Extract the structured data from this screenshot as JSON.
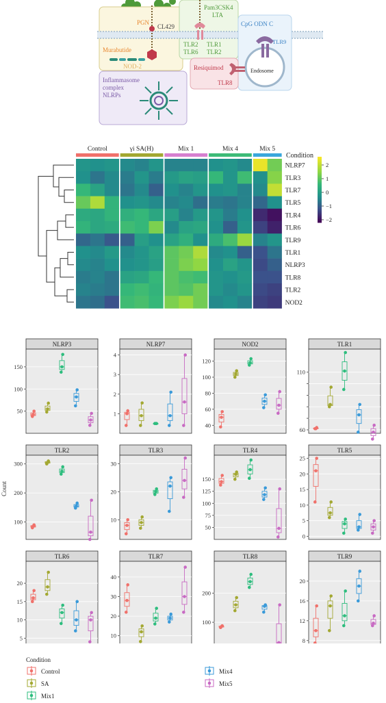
{
  "schematic": {
    "labels": {
      "pgn": "PGN",
      "cl429": "CL429",
      "murabutide": "Murabutide",
      "nod2": "NOD-2",
      "pam3": "Pam3CSK4",
      "lta": "LTA",
      "tlr2_a": "TLR2",
      "tlr6": "TLR6",
      "tlr1": "TLR1",
      "tlr2_b": "TLR2",
      "cpg": "CpG ODN C",
      "tlr9": "TLR9",
      "endosome": "Endosome",
      "resiquimod": "Resiquimod",
      "tlr8": "TLR8",
      "inflammasome": "Inflammasome",
      "complex": "complex",
      "nlrps": "NLRPs"
    },
    "colors": {
      "orange": "#e8872e",
      "green": "#4e9a3a",
      "red": "#c0394b",
      "blue": "#3b82c4",
      "purple": "#7a5aa6",
      "membrane": "#9fb7cc"
    }
  },
  "heatmap": {
    "condition_label": "Condition",
    "group_labels": [
      "Control",
      "γi SA(H)",
      "Mix 1",
      "Mix 4",
      "Mix 5"
    ],
    "group_colors": [
      "#f0716b",
      "#a3a832",
      "#d67fd0",
      "#3dbb78",
      "#3aa7dc"
    ],
    "rows": [
      "NLRP7",
      "TLR3",
      "TLR7",
      "TLR5",
      "TLR4",
      "TLR6",
      "TLR9",
      "TLR1",
      "NLRP3",
      "TLR8",
      "TLR2",
      "NOD2"
    ],
    "values": [
      [
        -0.2,
        -0.3,
        -0.2,
        -0.4,
        -0.5,
        -0.2,
        -0.5,
        -0.5,
        -0.5,
        -0.3,
        -0.2,
        -0.4,
        2.4,
        1.2
      ],
      [
        -0.3,
        -0.7,
        -0.4,
        -0.6,
        -0.2,
        -0.6,
        -0.1,
        0.1,
        0.0,
        0.6,
        -0.2,
        0.7,
        -0.3,
        1.4
      ],
      [
        0.6,
        0.1,
        -0.4,
        -0.7,
        -0.4,
        -1.0,
        -0.3,
        -0.5,
        -0.2,
        -0.3,
        -0.2,
        -0.5,
        -0.4,
        2.0
      ],
      [
        1.1,
        1.8,
        0.5,
        -0.3,
        -0.2,
        -0.4,
        -0.5,
        -0.4,
        -0.8,
        -0.6,
        -0.7,
        -0.5,
        -0.9,
        -0.3
      ],
      [
        0.3,
        0.2,
        0.5,
        0.4,
        0.6,
        0.2,
        0.0,
        -0.5,
        -0.1,
        -0.2,
        -0.6,
        -0.3,
        -1.7,
        -2.0
      ],
      [
        0.5,
        0.2,
        0.3,
        0.7,
        0.6,
        1.3,
        -0.4,
        0.1,
        0.2,
        -0.3,
        -1.0,
        -0.2,
        -1.4,
        -1.8
      ],
      [
        -0.9,
        -0.7,
        -1.1,
        -1.0,
        0.0,
        -0.3,
        0.1,
        0.4,
        -0.3,
        0.3,
        0.8,
        1.6,
        -0.5,
        -0.2
      ],
      [
        -0.3,
        -0.4,
        -0.1,
        -0.4,
        -0.2,
        0.1,
        1.0,
        1.2,
        1.8,
        -0.4,
        -0.3,
        -1.0,
        -1.2,
        -0.7
      ],
      [
        -0.4,
        -0.5,
        -0.3,
        -0.3,
        -0.2,
        0.0,
        1.0,
        1.3,
        1.5,
        -0.3,
        0.1,
        -0.2,
        -1.3,
        -1.0
      ],
      [
        -0.6,
        -0.5,
        -0.7,
        0.1,
        0.2,
        0.6,
        1.0,
        0.8,
        0.7,
        -0.2,
        -0.3,
        -0.1,
        -1.2,
        -1.2
      ],
      [
        -0.5,
        -0.6,
        -0.7,
        0.6,
        0.7,
        0.5,
        1.0,
        0.9,
        1.2,
        -0.2,
        -0.4,
        -0.2,
        -1.3,
        -1.4
      ],
      [
        -0.7,
        -0.8,
        -1.2,
        0.7,
        0.8,
        0.6,
        1.3,
        1.6,
        1.2,
        -0.4,
        -0.3,
        -0.5,
        -1.4,
        -1.5
      ]
    ],
    "scale_ticks": [
      "2",
      "1",
      "0",
      "−1",
      "−2"
    ],
    "scale_values": [
      2,
      1,
      0,
      -1,
      -2
    ],
    "scale_range": [
      -2.2,
      2.6
    ]
  },
  "chart_data": {
    "type": "box",
    "ylabel": "Count",
    "legend_title": "Condition",
    "conditions": [
      "Control",
      "SA",
      "Mix1",
      "Mix4",
      "Mix5"
    ],
    "condition_colors": [
      "#f0716b",
      "#a3a832",
      "#2ebd7e",
      "#3a9ad9",
      "#c86ac3"
    ],
    "panels": [
      {
        "name": "NLRP3",
        "ylim": [
          0,
          190
        ],
        "ticks": [
          50,
          100,
          150
        ],
        "tick_labels": [
          "50",
          "100",
          "150"
        ],
        "points": [
          [
            38,
            42,
            50
          ],
          [
            48,
            55,
            68
          ],
          [
            138,
            150,
            178
          ],
          [
            62,
            82,
            98
          ],
          [
            18,
            30,
            45
          ]
        ]
      },
      {
        "name": "NLRP7",
        "ylim": [
          0,
          4.3
        ],
        "ticks": [
          1,
          2,
          3,
          4
        ],
        "tick_labels": [
          "1",
          "2",
          "3",
          "4"
        ],
        "points": [
          [
            0.4,
            1.0,
            1.15
          ],
          [
            0.4,
            0.9,
            1.55
          ],
          [
            0.5,
            0.5,
            0.5
          ],
          [
            0.4,
            0.9,
            2.1
          ],
          [
            0.4,
            1.6,
            4.0
          ]
        ]
      },
      {
        "name": "NOD2",
        "ylim": [
          30,
          135
        ],
        "ticks": [
          40,
          60,
          80,
          100,
          120
        ],
        "tick_labels": [
          "40",
          "60",
          "80",
          "100",
          "120"
        ],
        "points": [
          [
            38,
            50,
            57
          ],
          [
            100,
            104,
            108
          ],
          [
            115,
            118,
            123
          ],
          [
            62,
            70,
            78
          ],
          [
            55,
            65,
            82
          ]
        ]
      },
      {
        "name": "TLR1",
        "ylim": [
          57,
          130
        ],
        "ticks": [
          60,
          70,
          80,
          90,
          100,
          110
        ],
        "tick_labels": [
          "60",
          "",
          "",
          "",
          "",
          "110"
        ],
        "points": [
          [
            61,
            61,
            62
          ],
          [
            80,
            82,
            97
          ],
          [
            95,
            111,
            127
          ],
          [
            58,
            73,
            82
          ],
          [
            52,
            58,
            64
          ]
        ]
      },
      {
        "name": "TLR2",
        "ylim": [
          40,
          330
        ],
        "ticks": [
          100,
          200,
          300
        ],
        "tick_labels": [
          "100",
          "200",
          "300"
        ],
        "points": [
          [
            80,
            85,
            90
          ],
          [
            300,
            305,
            310
          ],
          [
            265,
            275,
            290
          ],
          [
            148,
            155,
            165
          ],
          [
            40,
            65,
            175
          ]
        ]
      },
      {
        "name": "TLR3",
        "ylim": [
          3,
          33
        ],
        "ticks": [
          10,
          20,
          30
        ],
        "tick_labels": [
          "10",
          "20",
          "30"
        ],
        "points": [
          [
            5,
            8,
            10
          ],
          [
            7,
            9,
            11
          ],
          [
            19,
            20,
            21
          ],
          [
            13,
            22,
            25
          ],
          [
            18,
            24,
            32
          ]
        ]
      },
      {
        "name": "TLR4",
        "ylim": [
          25,
          200
        ],
        "ticks": [
          50,
          75,
          100,
          125,
          150
        ],
        "tick_labels": [
          "50",
          "75",
          "100",
          "125",
          "150"
        ],
        "points": [
          [
            138,
            145,
            158
          ],
          [
            150,
            160,
            165
          ],
          [
            152,
            170,
            190
          ],
          [
            108,
            118,
            132
          ],
          [
            30,
            48,
            130
          ]
        ]
      },
      {
        "name": "TLR5",
        "ylim": [
          -1,
          26
        ],
        "ticks": [
          0,
          5,
          10,
          15,
          20,
          25
        ],
        "tick_labels": [
          "0",
          "5",
          "10",
          "15",
          "20",
          "25"
        ],
        "points": [
          [
            11,
            21,
            25
          ],
          [
            6,
            7.5,
            11
          ],
          [
            1,
            4,
            5.5
          ],
          [
            2,
            3,
            7
          ],
          [
            1,
            3,
            5
          ]
        ]
      },
      {
        "name": "TLR6",
        "ylim": [
          3,
          26
        ],
        "ticks": [
          5,
          10,
          15,
          20
        ],
        "tick_labels": [
          "5",
          "10",
          "15",
          "20"
        ],
        "points": [
          [
            15,
            16,
            18
          ],
          [
            17,
            19,
            23
          ],
          [
            9,
            12,
            14
          ],
          [
            7,
            10,
            15
          ],
          [
            4,
            10,
            12
          ]
        ]
      },
      {
        "name": "TLR7",
        "ylim": [
          5,
          48
        ],
        "ticks": [
          10,
          20,
          30,
          40
        ],
        "tick_labels": [
          "10",
          "20",
          "30",
          "40"
        ],
        "points": [
          [
            22,
            28,
            36
          ],
          [
            7,
            12,
            15
          ],
          [
            16,
            19,
            24
          ],
          [
            17,
            19,
            21
          ],
          [
            22,
            30,
            45
          ]
        ]
      },
      {
        "name": "TLR8",
        "ylim": [
          20,
          310
        ],
        "ticks": [
          100,
          200
        ],
        "tick_labels": [
          "100",
          "200"
        ],
        "points": [
          [
            82,
            85,
            88
          ],
          [
            140,
            160,
            185
          ],
          [
            220,
            240,
            265
          ],
          [
            135,
            155,
            160
          ],
          [
            25,
            30,
            160
          ]
        ]
      },
      {
        "name": "TLR9",
        "ylim": [
          7,
          24
        ],
        "ticks": [
          8,
          12,
          16,
          20
        ],
        "tick_labels": [
          "8",
          "12",
          "16",
          "20"
        ],
        "points": [
          [
            7.5,
            10,
            15
          ],
          [
            10,
            15,
            17
          ],
          [
            11,
            13,
            18
          ],
          [
            16,
            19,
            22
          ],
          [
            11,
            11.5,
            13
          ]
        ]
      }
    ]
  }
}
